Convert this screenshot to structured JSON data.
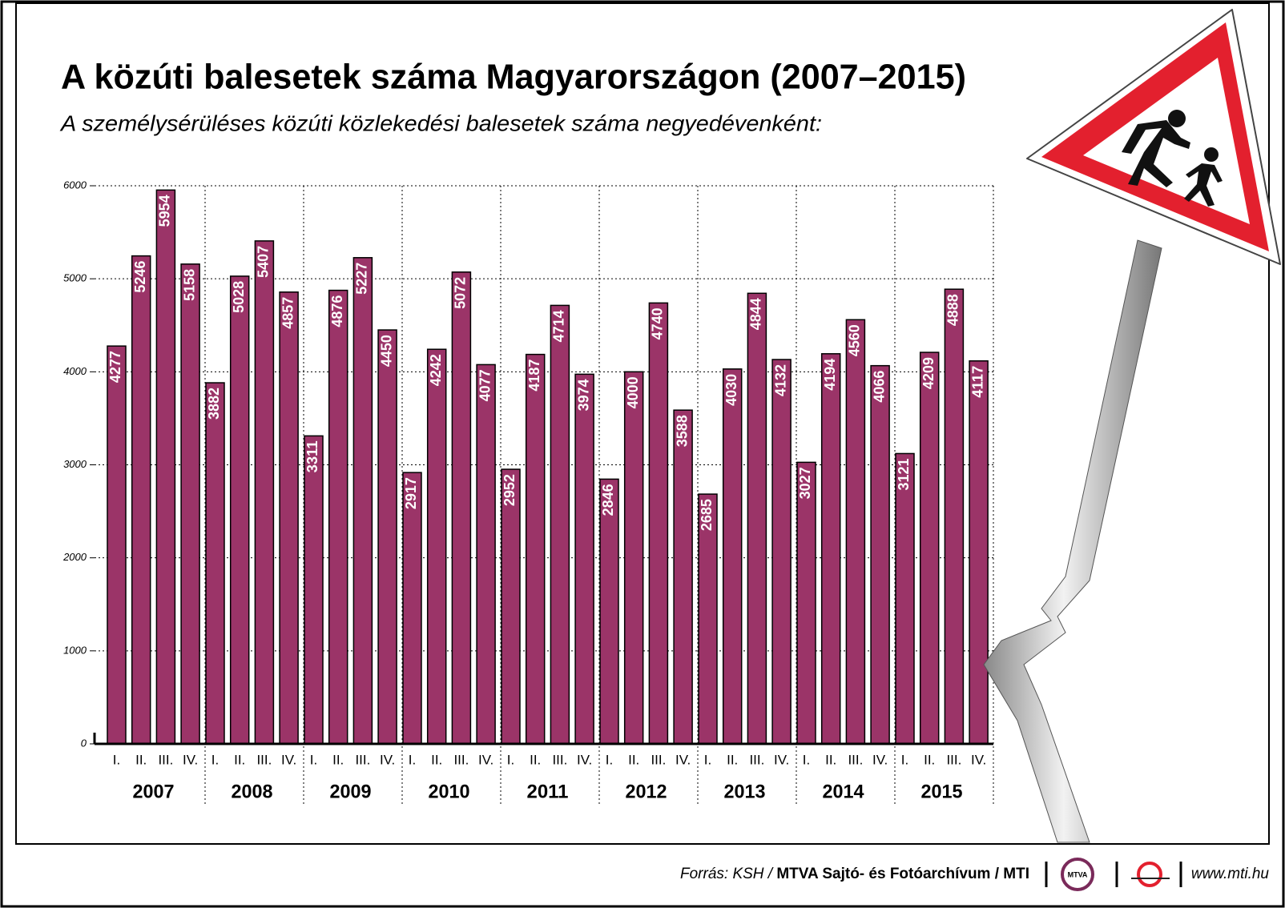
{
  "chart_data": {
    "type": "bar",
    "title": "A közúti balesetek száma Magyarországon (2007–2015)",
    "subtitle": "A személysérüléses közúti közlekedési balesetek száma negyedévenként:",
    "categories": [
      "I.",
      "II.",
      "III.",
      "IV.",
      "I.",
      "II.",
      "III.",
      "IV.",
      "I.",
      "II.",
      "III.",
      "IV.",
      "I.",
      "II.",
      "III.",
      "IV.",
      "I.",
      "II.",
      "III.",
      "IV.",
      "I.",
      "II.",
      "III.",
      "IV.",
      "I.",
      "II.",
      "III.",
      "IV.",
      "I.",
      "II.",
      "III.",
      "IV.",
      "I.",
      "II.",
      "III.",
      "IV."
    ],
    "groups": [
      "2007",
      "2008",
      "2009",
      "2010",
      "2011",
      "2012",
      "2013",
      "2014",
      "2015"
    ],
    "values": [
      4277,
      5246,
      5954,
      5158,
      3882,
      5028,
      5407,
      4857,
      3311,
      4876,
      5227,
      4450,
      2917,
      4242,
      5072,
      4077,
      2952,
      4187,
      4714,
      3974,
      2846,
      4000,
      4740,
      3588,
      2685,
      4030,
      4844,
      4132,
      3027,
      4194,
      4560,
      4066,
      3121,
      4209,
      4888,
      4117
    ],
    "color": "#9b3468",
    "ylim": [
      0,
      6000
    ],
    "yticks": [
      0,
      1000,
      2000,
      3000,
      4000,
      5000,
      6000
    ],
    "grid": true
  },
  "footer": {
    "source_prefix": "Forrás: KSH /",
    "source": "MTVA Sajtó- és Fotóarchívum / MTI",
    "logo": "MTVA",
    "url": "www.mti.hu"
  }
}
